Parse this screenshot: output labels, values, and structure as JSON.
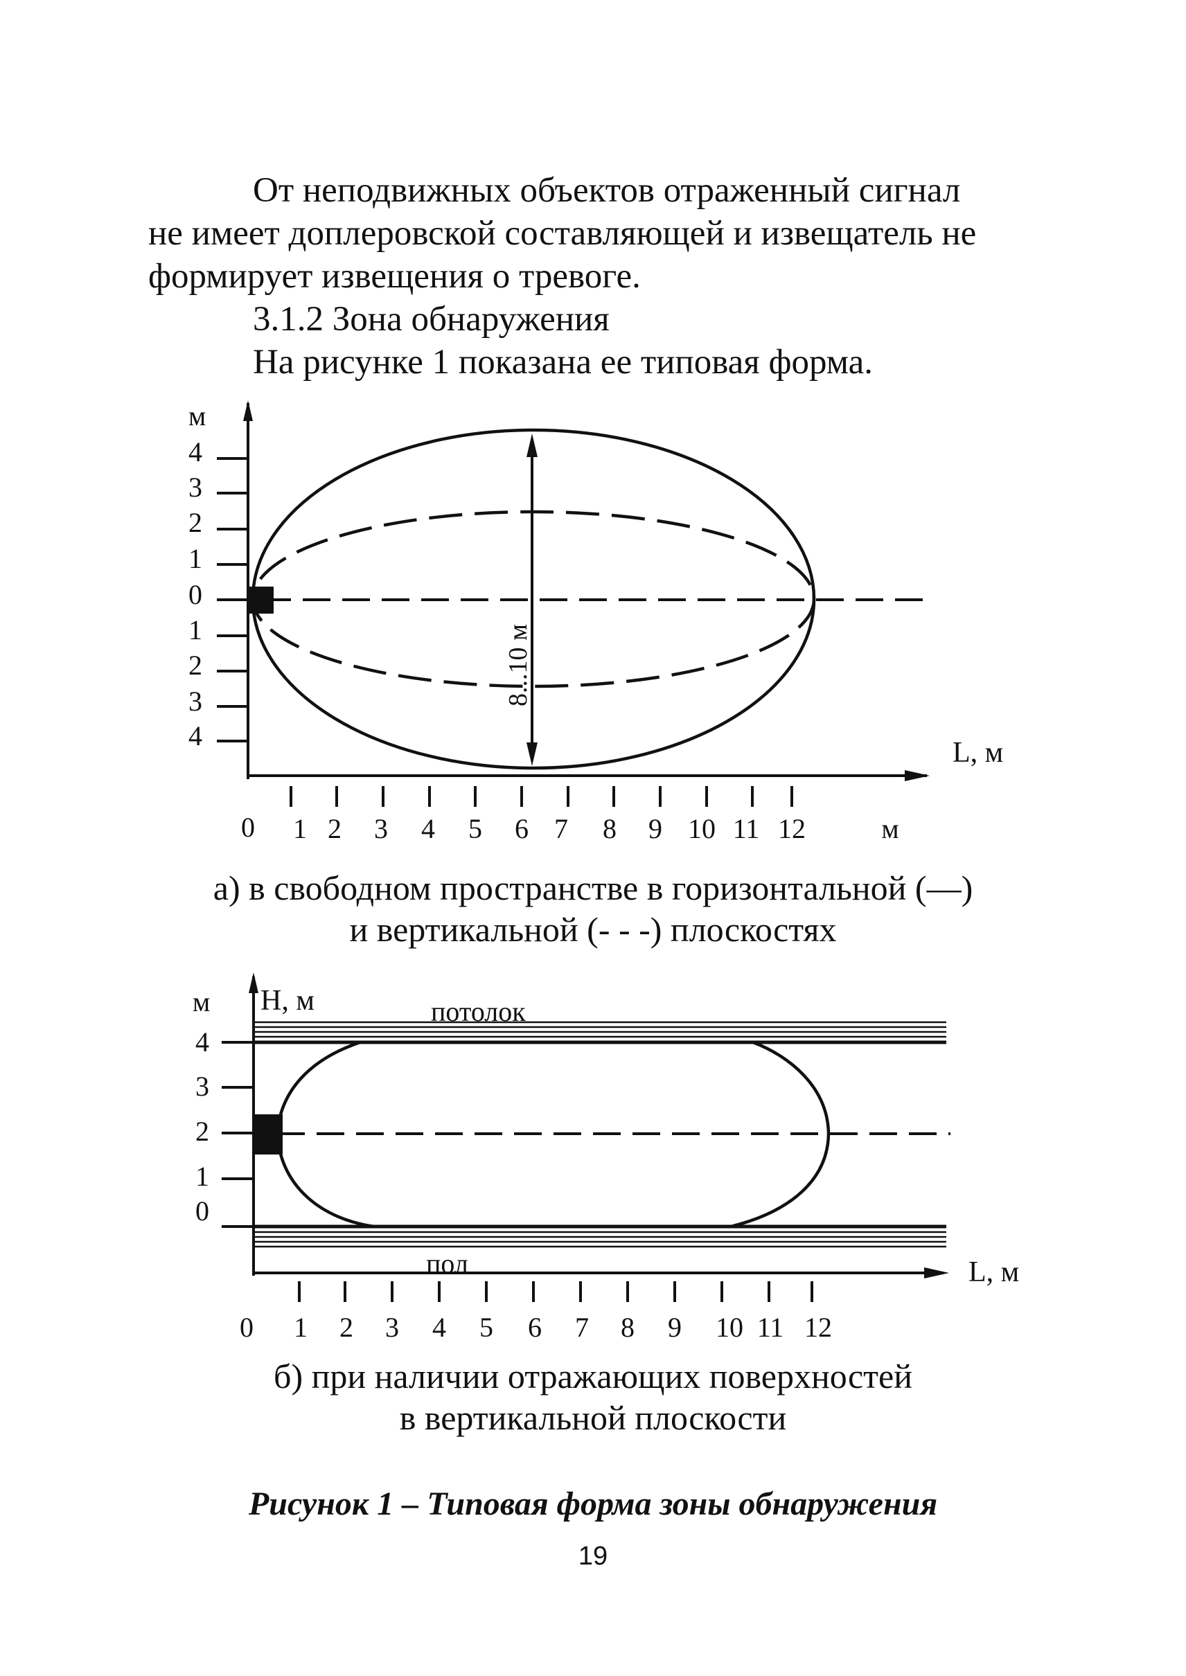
{
  "paragraph": {
    "line1": "От неподвижных объектов отраженный сигнал",
    "line2": "не имеет доплеровской составляющей и извещатель не",
    "line3": "формирует извещения о тревоге."
  },
  "section": {
    "heading": "3.1.2 Зона обнаружения",
    "intro": "На рисунке 1 показана ее типовая форма."
  },
  "figure_a": {
    "y_unit": "м",
    "y_ticks": [
      "4",
      "3",
      "2",
      "1",
      "0",
      "1",
      "2",
      "3",
      "4"
    ],
    "x_ticks": [
      "0",
      "1",
      "2",
      "3",
      "4",
      "5",
      "6",
      "7",
      "8",
      "9",
      "10",
      "11",
      "12"
    ],
    "x_unit": "м",
    "x_axis_label": "L, м",
    "width_label": "8...10 м",
    "caption_line1": "а) в свободном пространстве в горизонтальной (—)",
    "caption_line2": "и вертикальной (- - -) плоскостях"
  },
  "figure_b": {
    "y_unit": "м",
    "y_axis_label": "H, м",
    "y_ticks": [
      "4",
      "3",
      "2",
      "1",
      "0"
    ],
    "x_ticks": [
      "0",
      "1",
      "2",
      "3",
      "4",
      "5",
      "6",
      "7",
      "8",
      "9",
      "10",
      "11",
      "12"
    ],
    "x_axis_label": "L, м",
    "ceiling_label": "потолок",
    "floor_label": "пол",
    "caption_line1": "б) при наличии отражающих поверхностей",
    "caption_line2": "в вертикальной плоскости"
  },
  "figure_title": "Рисунок 1 – Типовая форма зоны обнаружения",
  "page_number": "19"
}
